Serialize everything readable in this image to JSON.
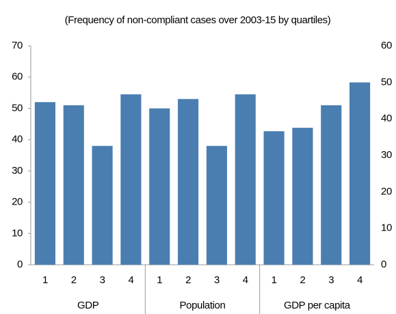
{
  "chart_data": {
    "type": "bar",
    "title": "(Frequency of non-compliant cases over 2003-15 by quartiles)",
    "categories": [
      "1",
      "2",
      "3",
      "4",
      "1",
      "2",
      "3",
      "4",
      "1",
      "2",
      "3",
      "4"
    ],
    "groups": [
      "GDP",
      "Population",
      "GDP per capita"
    ],
    "values": [
      52,
      51,
      38,
      54.5,
      50,
      53,
      38,
      54.5,
      42.7,
      43.8,
      51,
      58.3
    ],
    "color": "#4a7eb1",
    "ylim": [
      0,
      70
    ],
    "yticks": [
      0,
      10,
      20,
      30,
      40,
      50,
      60,
      70
    ],
    "y2lim": [
      0,
      60
    ],
    "y2ticks": [
      0,
      10,
      20,
      30,
      40,
      50,
      60
    ],
    "grid": false
  }
}
